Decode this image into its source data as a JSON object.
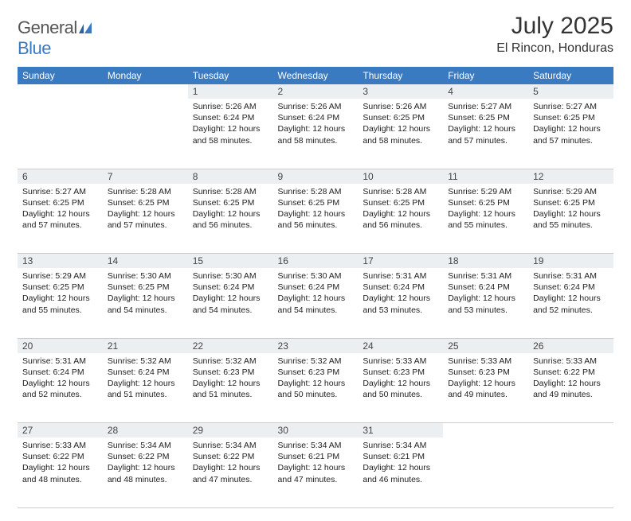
{
  "brand": {
    "part1": "General",
    "part2": "Blue"
  },
  "title": "July 2025",
  "location": "El Rincon, Honduras",
  "colors": {
    "header_bg": "#3a7ac0",
    "header_text": "#ffffff",
    "daynum_bg": "#eceff1",
    "text": "#222222",
    "brand_gray": "#555555",
    "brand_blue": "#3a7ac0"
  },
  "weekdays": [
    "Sunday",
    "Monday",
    "Tuesday",
    "Wednesday",
    "Thursday",
    "Friday",
    "Saturday"
  ],
  "weeks": [
    [
      null,
      null,
      {
        "n": "1",
        "sr": "5:26 AM",
        "ss": "6:24 PM",
        "dl": "12 hours and 58 minutes."
      },
      {
        "n": "2",
        "sr": "5:26 AM",
        "ss": "6:24 PM",
        "dl": "12 hours and 58 minutes."
      },
      {
        "n": "3",
        "sr": "5:26 AM",
        "ss": "6:25 PM",
        "dl": "12 hours and 58 minutes."
      },
      {
        "n": "4",
        "sr": "5:27 AM",
        "ss": "6:25 PM",
        "dl": "12 hours and 57 minutes."
      },
      {
        "n": "5",
        "sr": "5:27 AM",
        "ss": "6:25 PM",
        "dl": "12 hours and 57 minutes."
      }
    ],
    [
      {
        "n": "6",
        "sr": "5:27 AM",
        "ss": "6:25 PM",
        "dl": "12 hours and 57 minutes."
      },
      {
        "n": "7",
        "sr": "5:28 AM",
        "ss": "6:25 PM",
        "dl": "12 hours and 57 minutes."
      },
      {
        "n": "8",
        "sr": "5:28 AM",
        "ss": "6:25 PM",
        "dl": "12 hours and 56 minutes."
      },
      {
        "n": "9",
        "sr": "5:28 AM",
        "ss": "6:25 PM",
        "dl": "12 hours and 56 minutes."
      },
      {
        "n": "10",
        "sr": "5:28 AM",
        "ss": "6:25 PM",
        "dl": "12 hours and 56 minutes."
      },
      {
        "n": "11",
        "sr": "5:29 AM",
        "ss": "6:25 PM",
        "dl": "12 hours and 55 minutes."
      },
      {
        "n": "12",
        "sr": "5:29 AM",
        "ss": "6:25 PM",
        "dl": "12 hours and 55 minutes."
      }
    ],
    [
      {
        "n": "13",
        "sr": "5:29 AM",
        "ss": "6:25 PM",
        "dl": "12 hours and 55 minutes."
      },
      {
        "n": "14",
        "sr": "5:30 AM",
        "ss": "6:25 PM",
        "dl": "12 hours and 54 minutes."
      },
      {
        "n": "15",
        "sr": "5:30 AM",
        "ss": "6:24 PM",
        "dl": "12 hours and 54 minutes."
      },
      {
        "n": "16",
        "sr": "5:30 AM",
        "ss": "6:24 PM",
        "dl": "12 hours and 54 minutes."
      },
      {
        "n": "17",
        "sr": "5:31 AM",
        "ss": "6:24 PM",
        "dl": "12 hours and 53 minutes."
      },
      {
        "n": "18",
        "sr": "5:31 AM",
        "ss": "6:24 PM",
        "dl": "12 hours and 53 minutes."
      },
      {
        "n": "19",
        "sr": "5:31 AM",
        "ss": "6:24 PM",
        "dl": "12 hours and 52 minutes."
      }
    ],
    [
      {
        "n": "20",
        "sr": "5:31 AM",
        "ss": "6:24 PM",
        "dl": "12 hours and 52 minutes."
      },
      {
        "n": "21",
        "sr": "5:32 AM",
        "ss": "6:24 PM",
        "dl": "12 hours and 51 minutes."
      },
      {
        "n": "22",
        "sr": "5:32 AM",
        "ss": "6:23 PM",
        "dl": "12 hours and 51 minutes."
      },
      {
        "n": "23",
        "sr": "5:32 AM",
        "ss": "6:23 PM",
        "dl": "12 hours and 50 minutes."
      },
      {
        "n": "24",
        "sr": "5:33 AM",
        "ss": "6:23 PM",
        "dl": "12 hours and 50 minutes."
      },
      {
        "n": "25",
        "sr": "5:33 AM",
        "ss": "6:23 PM",
        "dl": "12 hours and 49 minutes."
      },
      {
        "n": "26",
        "sr": "5:33 AM",
        "ss": "6:22 PM",
        "dl": "12 hours and 49 minutes."
      }
    ],
    [
      {
        "n": "27",
        "sr": "5:33 AM",
        "ss": "6:22 PM",
        "dl": "12 hours and 48 minutes."
      },
      {
        "n": "28",
        "sr": "5:34 AM",
        "ss": "6:22 PM",
        "dl": "12 hours and 48 minutes."
      },
      {
        "n": "29",
        "sr": "5:34 AM",
        "ss": "6:22 PM",
        "dl": "12 hours and 47 minutes."
      },
      {
        "n": "30",
        "sr": "5:34 AM",
        "ss": "6:21 PM",
        "dl": "12 hours and 47 minutes."
      },
      {
        "n": "31",
        "sr": "5:34 AM",
        "ss": "6:21 PM",
        "dl": "12 hours and 46 minutes."
      },
      null,
      null
    ]
  ],
  "labels": {
    "sunrise": "Sunrise:",
    "sunset": "Sunset:",
    "daylight": "Daylight:"
  }
}
